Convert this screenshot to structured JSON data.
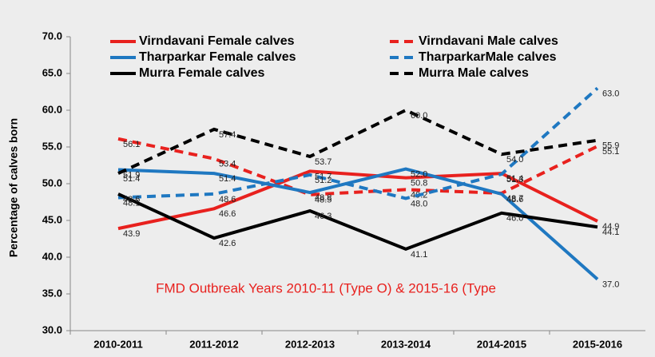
{
  "chart_data": {
    "type": "line",
    "y_label": "Percentage of  calves born",
    "annotation": "FMD Outbreak Years 2010-11 (Type O) & 2015-16 (Type",
    "annotation_color": "#e8211e",
    "categories": [
      "2010-2011",
      "2011-2012",
      "2012-2013",
      "2013-2014",
      "2014-2015",
      "2015-2016"
    ],
    "ylim": [
      30,
      70
    ],
    "yticks": [
      {
        "value": 30,
        "label": "30.0"
      },
      {
        "value": 35,
        "label": "35.0"
      },
      {
        "value": 40,
        "label": "40.0"
      },
      {
        "value": 45,
        "label": "45.0"
      },
      {
        "value": 50,
        "label": "50.0"
      },
      {
        "value": 55,
        "label": "55.0"
      },
      {
        "value": 60,
        "label": "60.0"
      },
      {
        "value": 65,
        "label": "65.0"
      },
      {
        "value": 70,
        "label": "70.0"
      }
    ],
    "series": [
      {
        "name": "Virndavani Female calves",
        "color": "#e8211e",
        "dashed": false,
        "values": [
          43.9,
          46.6,
          51.7,
          50.8,
          51.4,
          44.9
        ],
        "value_labels": [
          "43.9",
          "46.6",
          "51.7",
          "50.8",
          "51.4",
          "44.9"
        ]
      },
      {
        "name": "Virndavani Male calves",
        "color": "#e8211e",
        "dashed": true,
        "values": [
          56.1,
          53.4,
          48.5,
          49.2,
          48.7,
          55.1
        ],
        "value_labels": [
          "56.1",
          "53.4",
          "48.5",
          "49.2",
          "48.7",
          "55.1"
        ]
      },
      {
        "name": "Tharparkar Female calves",
        "color": "#1f78c1",
        "dashed": false,
        "values": [
          51.9,
          51.4,
          48.8,
          52.0,
          48.6,
          37.0
        ],
        "value_labels": [
          "51.9",
          "51.4",
          "48.8",
          "52.0",
          "48.6",
          "37.0"
        ]
      },
      {
        "name": "TharparkarMale calves",
        "color": "#1f78c1",
        "dashed": true,
        "values": [
          48.1,
          48.6,
          51.2,
          48.0,
          51.3,
          63.0
        ],
        "value_labels": [
          "48.1",
          "48.6",
          "51.2",
          "48.0",
          "51.3",
          "63.0"
        ]
      },
      {
        "name": "Murra Female calves",
        "color": "#000000",
        "dashed": false,
        "values": [
          48.6,
          42.6,
          46.3,
          41.1,
          46.0,
          44.1
        ],
        "value_labels": [
          "48.6",
          "42.6",
          "46.3",
          "41.1",
          "46.0",
          "44.1"
        ]
      },
      {
        "name": "Murra Male calves",
        "color": "#000000",
        "dashed": true,
        "values": [
          51.4,
          57.4,
          53.7,
          60.0,
          54.0,
          55.9
        ],
        "value_labels": [
          "51.4",
          "57.4",
          "53.7",
          "60.0",
          "54.0",
          "55.9"
        ]
      }
    ]
  }
}
